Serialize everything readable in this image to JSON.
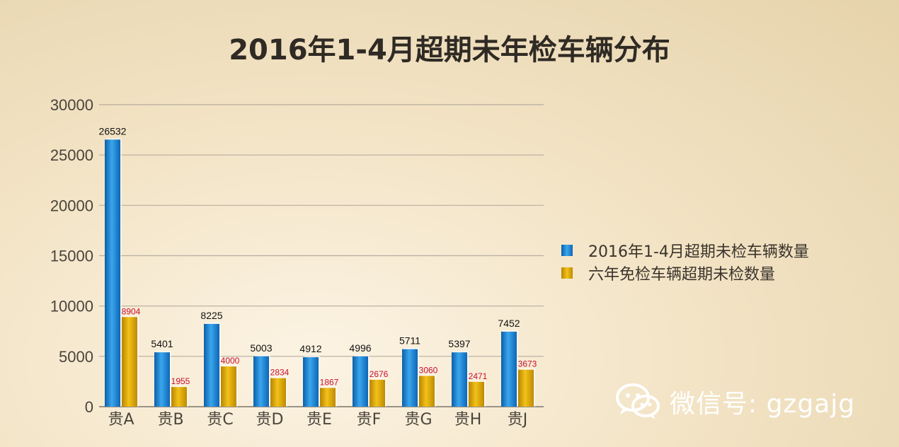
{
  "chart_data": {
    "type": "bar",
    "title": "2016年1-4月超期未年检车辆分布",
    "categories": [
      "贵A",
      "贵B",
      "贵C",
      "贵D",
      "贵E",
      "贵F",
      "贵G",
      "贵H",
      "贵J"
    ],
    "series": [
      {
        "name": "2016年1-4月超期未检车辆数量",
        "values": [
          26532,
          5401,
          8225,
          5003,
          4912,
          4996,
          5711,
          5397,
          7452
        ],
        "color": "#1e88d4",
        "label_color": "#111111"
      },
      {
        "name": "六年免检车辆超期未检数量",
        "values": [
          8904,
          1955,
          4000,
          2834,
          1867,
          2676,
          3060,
          2471,
          3673
        ],
        "color": "#e0a800",
        "label_color": "#c8102e"
      }
    ],
    "ylim": [
      0,
      30000
    ],
    "yticks": [
      0,
      5000,
      10000,
      15000,
      20000,
      25000,
      30000
    ],
    "grid": true,
    "legend_position": "right",
    "xlabel": "",
    "ylabel": ""
  },
  "watermark": {
    "icon": "wechat-icon",
    "text": "微信号: gzgajg"
  }
}
